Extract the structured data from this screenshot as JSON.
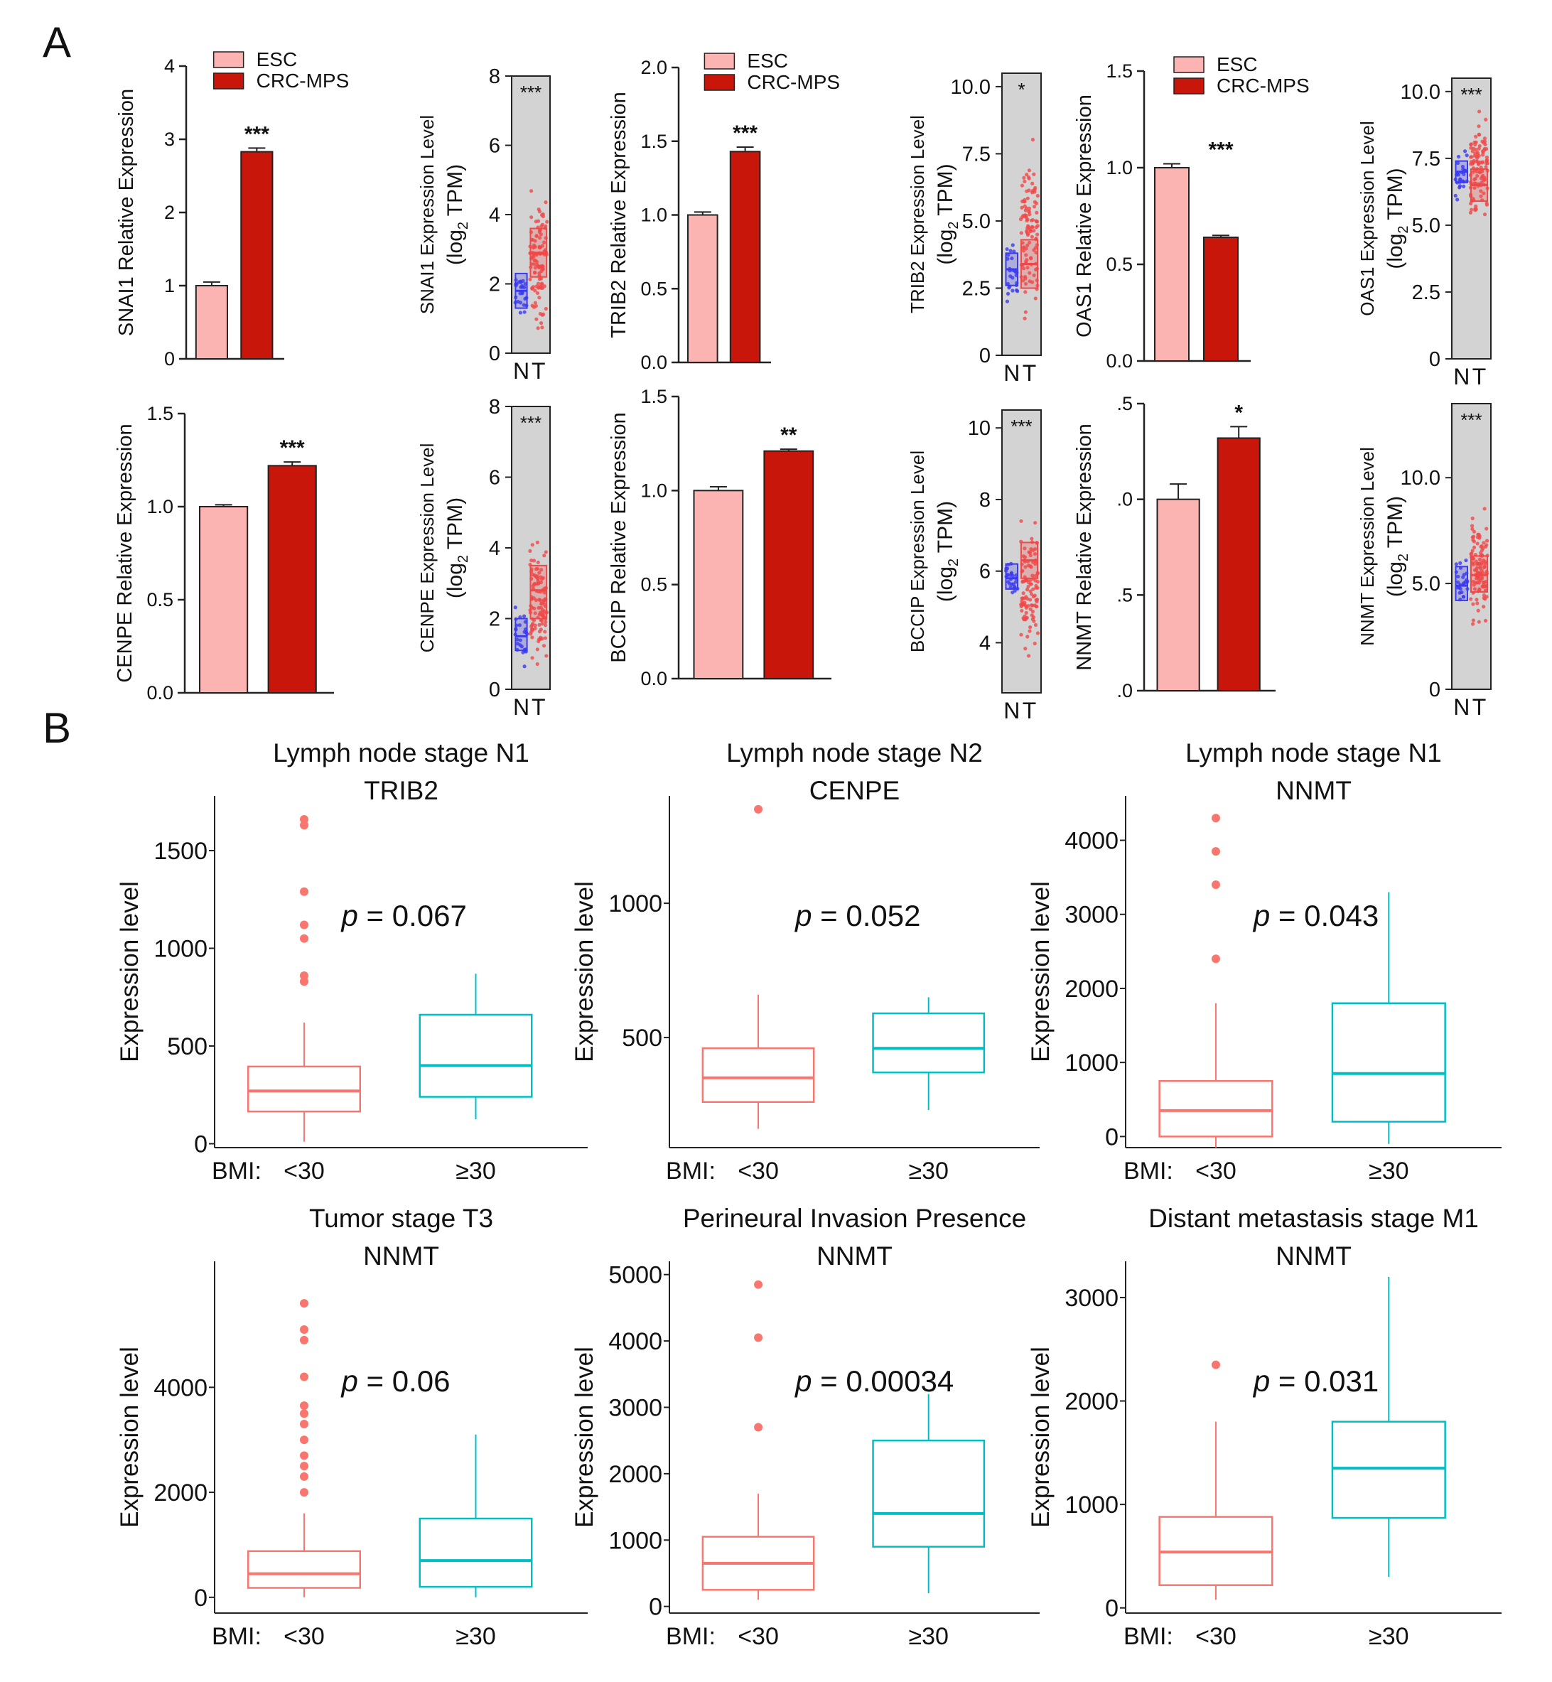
{
  "panel_labels": {
    "a": "A",
    "b": "B"
  },
  "legend": {
    "esc": "ESC",
    "crc": "CRC-MPS"
  },
  "colors": {
    "esc": "#fbb4b2",
    "crc": "#c8160b",
    "box_normal": "#3a3af0",
    "box_tumor": "#f04848",
    "gepia_bg": "#d3d3d3",
    "bmi_low": "#f8766d",
    "bmi_high": "#00bfc4"
  },
  "box_group_labels": {
    "n": "N",
    "t": "T"
  },
  "bmi_labels": {
    "prefix": "BMI:",
    "low": "<30",
    "high": "≥30"
  },
  "chart_data": [
    {
      "id": "snai1-bar",
      "type": "bar",
      "ylabel": "SNAI1 Relative Expression",
      "categories": [
        "ESC",
        "CRC-MPS"
      ],
      "values": [
        1.0,
        2.83
      ],
      "errors": [
        0.05,
        0.05
      ],
      "ylim": [
        0,
        4
      ],
      "ticks": [
        "0",
        "1",
        "2",
        "3",
        "4"
      ],
      "tickvals": [
        0,
        1,
        2,
        3,
        4
      ],
      "significance": "***",
      "legend": true
    },
    {
      "id": "snai1-box",
      "type": "box",
      "ylabel": "SNAI1 Expression Level",
      "ylabel2": "(log",
      "ylabel_sub": "2",
      "ylabel_tail": " TPM)",
      "ylim": [
        0,
        8
      ],
      "ticks": [
        "0",
        "2",
        "4",
        "6",
        "8"
      ],
      "tickvals": [
        0,
        2,
        4,
        6,
        8
      ],
      "significance": "***",
      "groups": [
        {
          "name": "N",
          "q1": 1.3,
          "median": 1.8,
          "q3": 2.3,
          "low": 0.6,
          "high": 3.0
        },
        {
          "name": "T",
          "q1": 2.2,
          "median": 2.9,
          "q3": 3.6,
          "low": 0.0,
          "high": 5.2
        }
      ]
    },
    {
      "id": "trib2-bar",
      "type": "bar",
      "ylabel": "TRIB2 Relative Expression",
      "categories": [
        "ESC",
        "CRC-MPS"
      ],
      "values": [
        1.0,
        1.43
      ],
      "errors": [
        0.02,
        0.03
      ],
      "ylim": [
        0,
        2.0
      ],
      "ticks": [
        "0.0",
        "0.5",
        "1.0",
        "1.5",
        "2.0"
      ],
      "tickvals": [
        0,
        0.5,
        1.0,
        1.5,
        2.0
      ],
      "significance": "***",
      "legend": true
    },
    {
      "id": "trib2-box",
      "type": "box",
      "ylabel": "TRIB2 Expression Level",
      "ylabel2": "(log",
      "ylabel_sub": "2",
      "ylabel_tail": " TPM)",
      "ylim": [
        0,
        10.5
      ],
      "ticks": [
        "0",
        "2.5",
        "5.0",
        "7.5",
        "10.0"
      ],
      "tickvals": [
        0,
        2.5,
        5.0,
        7.5,
        10.0
      ],
      "significance": "*",
      "groups": [
        {
          "name": "N",
          "q1": 2.6,
          "median": 3.2,
          "q3": 3.8,
          "low": 1.5,
          "high": 4.8
        },
        {
          "name": "T",
          "q1": 2.5,
          "median": 3.4,
          "q3": 4.3,
          "low": 0.5,
          "high": 8.5
        }
      ]
    },
    {
      "id": "oas1-bar",
      "type": "bar",
      "ylabel": "OAS1 Relative Expression",
      "categories": [
        "ESC",
        "CRC-MPS"
      ],
      "values": [
        1.0,
        0.64
      ],
      "errors": [
        0.02,
        0.01
      ],
      "ylim": [
        0,
        1.5
      ],
      "ticks": [
        "0.0",
        "0.5",
        "1.0",
        "1.5"
      ],
      "tickvals": [
        0,
        0.5,
        1.0,
        1.5
      ],
      "significance": "***",
      "legend": true
    },
    {
      "id": "oas1-box",
      "type": "box",
      "ylabel": "OAS1 Expression Level",
      "ylabel2": "(log",
      "ylabel_sub": "2",
      "ylabel_tail": " TPM)",
      "ylim": [
        0,
        10.5
      ],
      "ticks": [
        "0",
        "2.5",
        "5.0",
        "7.5",
        "10.0"
      ],
      "tickvals": [
        0,
        2.5,
        5.0,
        7.5,
        10.0
      ],
      "significance": "***",
      "groups": [
        {
          "name": "N",
          "q1": 6.6,
          "median": 7.0,
          "q3": 7.4,
          "low": 5.5,
          "high": 8.3
        },
        {
          "name": "T",
          "q1": 5.9,
          "median": 6.5,
          "q3": 7.1,
          "low": 4.5,
          "high": 9.5
        }
      ]
    },
    {
      "id": "cenpe-bar",
      "type": "bar",
      "ylabel": "CENPE Relative Expression",
      "categories": [
        "ESC",
        "CRC-MPS"
      ],
      "values": [
        1.0,
        1.22
      ],
      "errors": [
        0.01,
        0.02
      ],
      "ylim": [
        0,
        1.5
      ],
      "ticks": [
        "0.0",
        "0.5",
        "1.0",
        "1.5"
      ],
      "tickvals": [
        0,
        0.5,
        1.0,
        1.5
      ],
      "significance": "***",
      "legend": false
    },
    {
      "id": "cenpe-box",
      "type": "box",
      "ylabel": "CENPE Expression Level",
      "ylabel2": "(log",
      "ylabel_sub": "2",
      "ylabel_tail": " TPM)",
      "ylim": [
        0,
        8
      ],
      "ticks": [
        "0",
        "2",
        "4",
        "6",
        "8"
      ],
      "tickvals": [
        0,
        2,
        4,
        6,
        8
      ],
      "significance": "***",
      "groups": [
        {
          "name": "N",
          "q1": 1.1,
          "median": 1.5,
          "q3": 2.0,
          "low": 0.5,
          "high": 2.6
        },
        {
          "name": "T",
          "q1": 2.0,
          "median": 2.8,
          "q3": 3.5,
          "low": 0.3,
          "high": 4.6
        }
      ]
    },
    {
      "id": "bccip-bar",
      "type": "bar",
      "ylabel": "BCCIP Relative Expression",
      "categories": [
        "ESC",
        "CRC-MPS"
      ],
      "values": [
        1.0,
        1.21
      ],
      "errors": [
        0.02,
        0.01
      ],
      "ylim": [
        0,
        1.5
      ],
      "ticks": [
        "0.0",
        "0.5",
        "1.0",
        "1.5"
      ],
      "tickvals": [
        0,
        0.5,
        1.0,
        1.5
      ],
      "significance": "**",
      "legend": false
    },
    {
      "id": "bccip-box",
      "type": "box",
      "ylabel": "BCCIP Expression Level",
      "ylabel2": "(log",
      "ylabel_sub": "2",
      "ylabel_tail": " TPM)",
      "ylim": [
        2.6,
        10.5
      ],
      "ticks": [
        "4",
        "6",
        "8",
        "10"
      ],
      "tickvals": [
        4,
        6,
        8,
        10
      ],
      "significance": "***",
      "groups": [
        {
          "name": "N",
          "q1": 5.5,
          "median": 5.8,
          "q3": 6.2,
          "low": 5.0,
          "high": 6.7
        },
        {
          "name": "T",
          "q1": 5.8,
          "median": 6.3,
          "q3": 6.8,
          "low": 3.2,
          "high": 8.0
        }
      ]
    },
    {
      "id": "nnmt-bar",
      "type": "bar",
      "ylabel": "NNMT Relative Expression",
      "categories": [
        "ESC",
        "CRC-MPS"
      ],
      "values": [
        1.0,
        1.32
      ],
      "errors": [
        0.08,
        0.06
      ],
      "ylim": [
        0,
        1.5
      ],
      "ticks": [
        ".0",
        ".5",
        ".0",
        ".5"
      ],
      "tickvals": [
        0,
        0.5,
        1.0,
        1.5
      ],
      "significance": "*",
      "legend": false
    },
    {
      "id": "nnmt-box",
      "type": "box",
      "ylabel": "NNMT Expression Level",
      "ylabel2": "(log",
      "ylabel_sub": "2",
      "ylabel_tail": " TPM)",
      "ylim": [
        0,
        13.5
      ],
      "ticks": [
        "0",
        "5.0",
        "10.0"
      ],
      "tickvals": [
        0,
        5,
        10
      ],
      "significance": "***",
      "groups": [
        {
          "name": "N",
          "q1": 4.2,
          "median": 4.9,
          "q3": 5.8,
          "low": 3.5,
          "high": 6.5
        },
        {
          "name": "T",
          "q1": 4.6,
          "median": 5.4,
          "q3": 6.3,
          "low": 2.5,
          "high": 9.0
        }
      ]
    },
    {
      "id": "b1",
      "type": "box",
      "title": "Lymph node stage N1",
      "subtitle": "TRIB2",
      "ylabel": "Expression level",
      "ylim": [
        -20,
        1780
      ],
      "ticks": [
        "0",
        "500",
        "1000",
        "1500"
      ],
      "tickvals": [
        0,
        500,
        1000,
        1500
      ],
      "pvalue": "= 0.067",
      "groups": [
        {
          "name": "<30",
          "low": 10,
          "q1": 165,
          "median": 270,
          "q3": 395,
          "high": 620,
          "outliers": [
            830,
            860,
            1050,
            1120,
            1290,
            1630,
            1660
          ]
        },
        {
          "name": "≥30",
          "low": 125,
          "q1": 240,
          "median": 400,
          "q3": 660,
          "high": 870,
          "outliers": []
        }
      ]
    },
    {
      "id": "b2",
      "type": "box",
      "title": "Lymph node stage N2",
      "subtitle": "CENPE",
      "ylabel": "Expression level",
      "ylim": [
        90,
        1400
      ],
      "ticks": [
        "500",
        "1000"
      ],
      "tickvals": [
        500,
        1000
      ],
      "pvalue": "= 0.052",
      "groups": [
        {
          "name": "<30",
          "low": 160,
          "q1": 260,
          "median": 350,
          "q3": 460,
          "high": 660,
          "outliers": [
            1350
          ]
        },
        {
          "name": "≥30",
          "low": 230,
          "q1": 370,
          "median": 460,
          "q3": 590,
          "high": 650,
          "outliers": []
        }
      ]
    },
    {
      "id": "b3",
      "type": "box",
      "title": "Lymph node stage N1",
      "subtitle": "NNMT",
      "ylabel": "Expression level",
      "ylim": [
        -150,
        4600
      ],
      "ticks": [
        "0",
        "1000",
        "2000",
        "3000",
        "4000"
      ],
      "tickvals": [
        0,
        1000,
        2000,
        3000,
        4000
      ],
      "pvalue": "= 0.043",
      "groups": [
        {
          "name": "<30",
          "low": -150,
          "q1": 0,
          "median": 350,
          "q3": 750,
          "high": 1800,
          "outliers": [
            2400,
            3400,
            3850,
            4300
          ]
        },
        {
          "name": "≥30",
          "low": -100,
          "q1": 200,
          "median": 850,
          "q3": 1800,
          "high": 3300,
          "outliers": []
        }
      ]
    },
    {
      "id": "b4",
      "type": "box",
      "title": "Tumor stage T3",
      "subtitle": "NNMT",
      "ylabel": "Expression level",
      "ylim": [
        -300,
        6400
      ],
      "ticks": [
        "0",
        "2000",
        "4000"
      ],
      "tickvals": [
        0,
        2000,
        4000
      ],
      "pvalue": "= 0.06",
      "groups": [
        {
          "name": "<30",
          "low": 0,
          "q1": 180,
          "median": 450,
          "q3": 880,
          "high": 1600,
          "outliers": [
            2000,
            2300,
            2500,
            2700,
            3000,
            3300,
            3500,
            3650,
            4200,
            4900,
            5100,
            5600
          ]
        },
        {
          "name": "≥30",
          "low": 0,
          "q1": 200,
          "median": 700,
          "q3": 1500,
          "high": 3100,
          "outliers": []
        }
      ]
    },
    {
      "id": "b5",
      "type": "box",
      "title": "Perineural Invasion Presence",
      "subtitle": "NNMT",
      "ylabel": "Expression level",
      "ylim": [
        -100,
        5200
      ],
      "ticks": [
        "0",
        "1000",
        "2000",
        "3000",
        "4000",
        "5000"
      ],
      "tickvals": [
        0,
        1000,
        2000,
        3000,
        4000,
        5000
      ],
      "pvalue": "= 0.00034",
      "groups": [
        {
          "name": "<30",
          "low": 100,
          "q1": 250,
          "median": 650,
          "q3": 1050,
          "high": 1700,
          "outliers": [
            2700,
            4050,
            4850
          ]
        },
        {
          "name": "≥30",
          "low": 200,
          "q1": 900,
          "median": 1400,
          "q3": 2500,
          "high": 3200,
          "outliers": []
        }
      ]
    },
    {
      "id": "b6",
      "type": "box",
      "title": "Distant metastasis stage M1",
      "subtitle": "NNMT",
      "ylabel": "Expression level",
      "ylim": [
        -50,
        3350
      ],
      "ticks": [
        "0",
        "1000",
        "2000",
        "3000"
      ],
      "tickvals": [
        0,
        1000,
        2000,
        3000
      ],
      "pvalue": "= 0.031",
      "groups": [
        {
          "name": "<30",
          "low": 80,
          "q1": 220,
          "median": 540,
          "q3": 880,
          "high": 1800,
          "outliers": [
            2350
          ]
        },
        {
          "name": "≥30",
          "low": 300,
          "q1": 870,
          "median": 1350,
          "q3": 1800,
          "high": 3200,
          "outliers": []
        }
      ]
    }
  ]
}
